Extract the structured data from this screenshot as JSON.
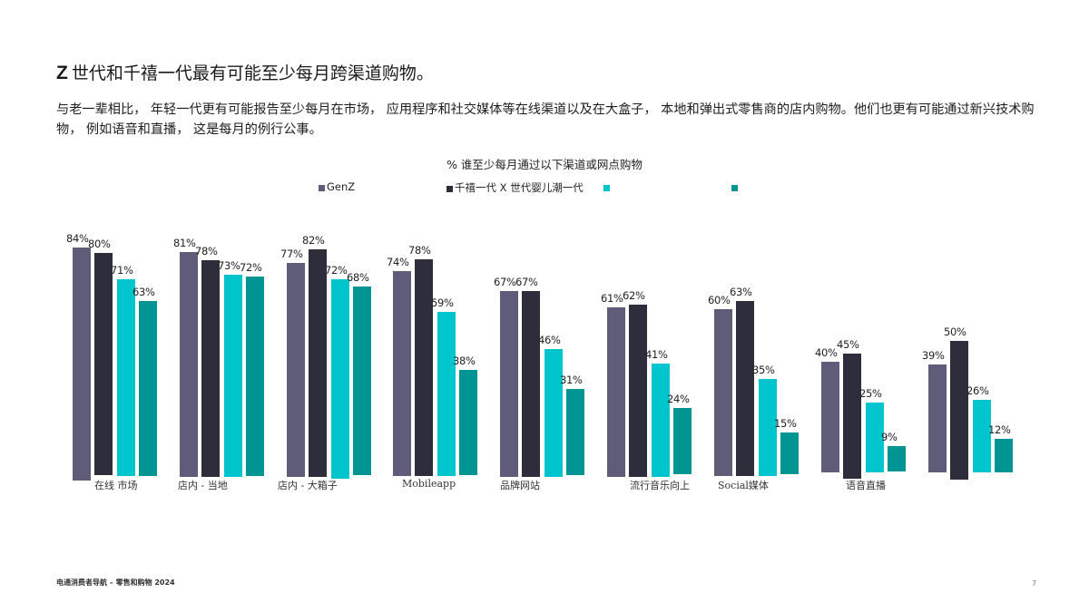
{
  "page": {
    "title_prefix": "Z",
    "title_rest": "世代和千禧一代最有可能至少每月跨渠道购物。",
    "subtitle": "与老一辈相比， 年轻一代更有可能报告至少每月在市场， 应用程序和社交媒体等在线渠道以及在大盒子， 本地和弹出式零售商的店内购物。他们也更有可能通过新兴技术购物， 例如语音和直播， 这是每月的例行公事。",
    "footer": "电通消费者导航 – 零售和购物 2024",
    "page_number": "7"
  },
  "legend": [
    {
      "label": "GenZ",
      "color": "#5e5c78"
    },
    {
      "label": "千禧一代 X 世代婴儿潮一代",
      "color": "#2e2d3b"
    },
    {
      "label": "",
      "color": "#00c5cc"
    },
    {
      "label": "",
      "color": "#009592"
    }
  ],
  "chart_data": {
    "type": "bar",
    "title": "% 谁至少每月通过以下渠道或网点购物",
    "xlabel": "",
    "ylabel": "",
    "ylim": [
      0,
      100
    ],
    "grid": false,
    "legend_position": "top",
    "categories": [
      "在线 市场",
      "店内 - 当地",
      "店内 - 大箱子",
      "Mobileapp",
      "品牌网站",
      "流行音乐向上",
      "Social媒体",
      "语音直播",
      ""
    ],
    "series": [
      {
        "name": "GenZ",
        "color": "#5e5c78",
        "values": [
          84,
          81,
          77,
          74,
          67,
          61,
          60,
          40,
          39
        ]
      },
      {
        "name": "千禧一代",
        "color": "#2e2d3b",
        "values": [
          80,
          78,
          82,
          78,
          67,
          62,
          63,
          45,
          50
        ]
      },
      {
        "name": "X 世代",
        "color": "#00c5cc",
        "values": [
          71,
          73,
          72,
          59,
          46,
          41,
          35,
          25,
          26
        ]
      },
      {
        "name": "婴儿潮一代",
        "color": "#009592",
        "values": [
          63,
          72,
          68,
          38,
          31,
          24,
          15,
          9,
          12
        ]
      }
    ],
    "value_labels": [
      [
        "84%",
        "80%",
        "71%",
        "63%"
      ],
      [
        "81%",
        "78%",
        "73%",
        "72%"
      ],
      [
        "77%",
        "82%",
        "72%",
        "68%"
      ],
      [
        "74%",
        "78%",
        "59%",
        "38%"
      ],
      [
        "67%",
        "67%",
        "46%",
        "31%"
      ],
      [
        "61%",
        "62%",
        "41%",
        "24%"
      ],
      [
        "60%",
        "63%",
        "35%",
        "15%"
      ],
      [
        "40%",
        "45%",
        "25%",
        "9%"
      ],
      [
        "39%",
        "50%",
        "26%",
        "12%"
      ]
    ]
  }
}
